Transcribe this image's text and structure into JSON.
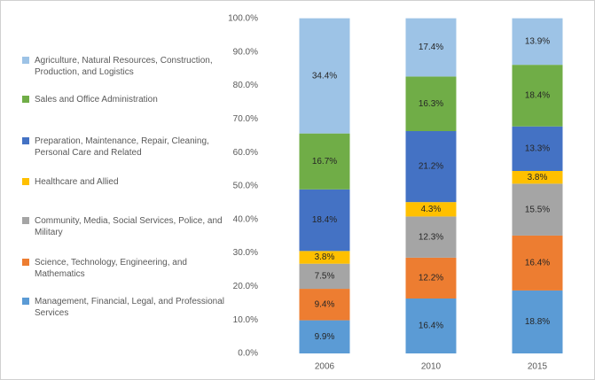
{
  "chart_data": {
    "type": "stacked_bar",
    "categories": [
      "2006",
      "2010",
      "2015"
    ],
    "series": [
      {
        "name": "Management, Financial, Legal, and Professional Services",
        "color": "#5b9bd5",
        "values": [
          9.9,
          16.4,
          18.8
        ],
        "value_labels": [
          "9.9%",
          "16.4%",
          "18.8%"
        ]
      },
      {
        "name": "Science, Technology, Engineering, and Mathematics",
        "color": "#ed7d31",
        "values": [
          9.4,
          12.2,
          16.4
        ],
        "value_labels": [
          "9.4%",
          "12.2%",
          "16.4%"
        ]
      },
      {
        "name": "Community, Media, Social Services, Police, and Military",
        "color": "#a5a5a5",
        "values": [
          7.5,
          12.3,
          15.5
        ],
        "value_labels": [
          "7.5%",
          "12.3%",
          "15.5%"
        ]
      },
      {
        "name": "Healthcare and Allied",
        "color": "#ffc000",
        "values": [
          3.8,
          4.3,
          3.8
        ],
        "value_labels": [
          "3.8%",
          "4.3%",
          "3.8%"
        ]
      },
      {
        "name": "Preparation, Maintenance, Repair, Cleaning, Personal Care and Related",
        "color": "#4472c4",
        "values": [
          18.4,
          21.2,
          13.3
        ],
        "value_labels": [
          "18.4%",
          "21.2%",
          "13.3%"
        ]
      },
      {
        "name": "Sales and Office Administration",
        "color": "#70ad47",
        "values": [
          16.7,
          16.3,
          18.4
        ],
        "value_labels": [
          "16.7%",
          "16.3%",
          "18.4%"
        ]
      },
      {
        "name": "Agriculture, Natural Resources, Construction, Production, and Logistics",
        "color": "#9dc3e6",
        "values": [
          34.4,
          17.4,
          13.9
        ],
        "value_labels": [
          "34.4%",
          "17.4%",
          "13.9%"
        ]
      }
    ],
    "ylim": [
      0,
      100
    ],
    "yticks": [
      {
        "value": 0,
        "label": "0.0%"
      },
      {
        "value": 10,
        "label": "10.0%"
      },
      {
        "value": 20,
        "label": "20.0%"
      },
      {
        "value": 30,
        "label": "30.0%"
      },
      {
        "value": 40,
        "label": "40.0%"
      },
      {
        "value": 50,
        "label": "50.0%"
      },
      {
        "value": 60,
        "label": "60.0%"
      },
      {
        "value": 70,
        "label": "70.0%"
      },
      {
        "value": 80,
        "label": "80.0%"
      },
      {
        "value": 90,
        "label": "90.0%"
      },
      {
        "value": 100,
        "label": "100.0%"
      }
    ],
    "grid": false,
    "legend": "left"
  }
}
